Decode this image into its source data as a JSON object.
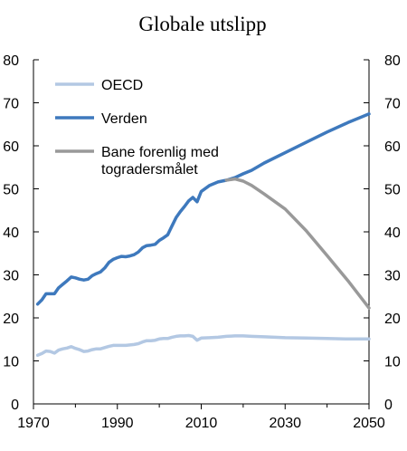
{
  "chart_data": {
    "type": "line",
    "title": "Globale utslipp",
    "xlabel": "",
    "ylabel": "",
    "xlim": [
      1970,
      2050
    ],
    "ylim": [
      0,
      80
    ],
    "x_ticks": [
      "1970",
      "1990",
      "2010",
      "2030",
      "2050"
    ],
    "y_ticks_left": [
      "0",
      "10",
      "20",
      "30",
      "40",
      "50",
      "60",
      "70",
      "80"
    ],
    "y_ticks_right": [
      "0",
      "10",
      "20",
      "30",
      "40",
      "50",
      "60",
      "70",
      "80"
    ],
    "grid": false,
    "legend_position": "top-left",
    "series": [
      {
        "name": "OECD",
        "color": "#b3c8e3",
        "x": [
          1971,
          1972,
          1973,
          1974,
          1975,
          1976,
          1977,
          1978,
          1979,
          1980,
          1981,
          1982,
          1983,
          1984,
          1985,
          1986,
          1987,
          1988,
          1989,
          1990,
          1991,
          1992,
          1993,
          1994,
          1995,
          1996,
          1997,
          1998,
          1999,
          2000,
          2001,
          2002,
          2003,
          2004,
          2005,
          2006,
          2007,
          2008,
          2009,
          2010,
          2012,
          2014,
          2016,
          2018,
          2020,
          2022,
          2025,
          2030,
          2035,
          2040,
          2045,
          2050
        ],
        "y": [
          11.3,
          11.7,
          12.3,
          12.2,
          11.8,
          12.5,
          12.8,
          13.0,
          13.3,
          12.9,
          12.6,
          12.2,
          12.3,
          12.6,
          12.8,
          12.8,
          13.1,
          13.4,
          13.6,
          13.6,
          13.6,
          13.6,
          13.7,
          13.8,
          14.0,
          14.4,
          14.7,
          14.7,
          14.8,
          15.1,
          15.2,
          15.2,
          15.5,
          15.7,
          15.8,
          15.8,
          15.9,
          15.7,
          14.8,
          15.3,
          15.4,
          15.5,
          15.7,
          15.8,
          15.8,
          15.7,
          15.6,
          15.4,
          15.3,
          15.2,
          15.1,
          15.1
        ]
      },
      {
        "name": "Verden",
        "color": "#3e79bd",
        "x": [
          1971,
          1972,
          1973,
          1974,
          1975,
          1976,
          1977,
          1978,
          1979,
          1980,
          1981,
          1982,
          1983,
          1984,
          1985,
          1986,
          1987,
          1988,
          1989,
          1990,
          1991,
          1992,
          1993,
          1994,
          1995,
          1996,
          1997,
          1998,
          1999,
          2000,
          2001,
          2002,
          2003,
          2004,
          2005,
          2006,
          2007,
          2008,
          2009,
          2010,
          2012,
          2014,
          2016,
          2018,
          2020,
          2022,
          2025,
          2030,
          2035,
          2040,
          2045,
          2050
        ],
        "y": [
          23.2,
          24.2,
          25.6,
          25.6,
          25.6,
          27.0,
          27.8,
          28.6,
          29.5,
          29.3,
          29.0,
          28.8,
          29.0,
          29.8,
          30.3,
          30.7,
          31.6,
          32.9,
          33.6,
          34.0,
          34.3,
          34.2,
          34.4,
          34.7,
          35.3,
          36.3,
          36.8,
          36.9,
          37.1,
          38.0,
          38.6,
          39.3,
          41.3,
          43.3,
          44.7,
          45.9,
          47.2,
          48.0,
          47.0,
          49.4,
          50.8,
          51.6,
          52.0,
          52.6,
          53.5,
          54.3,
          56.0,
          58.4,
          60.8,
          63.2,
          65.4,
          67.4
        ]
      },
      {
        "name": "Bane forenlig med togradersmålet",
        "name_lines": [
          "Bane forenlig med",
          "togradersmålet"
        ],
        "color": "#999999",
        "x": [
          2016,
          2018,
          2020,
          2022,
          2025,
          2030,
          2035,
          2040,
          2045,
          2050
        ],
        "y": [
          52.0,
          52.3,
          51.8,
          50.8,
          48.8,
          45.3,
          40.3,
          34.5,
          28.6,
          22.3
        ]
      }
    ]
  }
}
